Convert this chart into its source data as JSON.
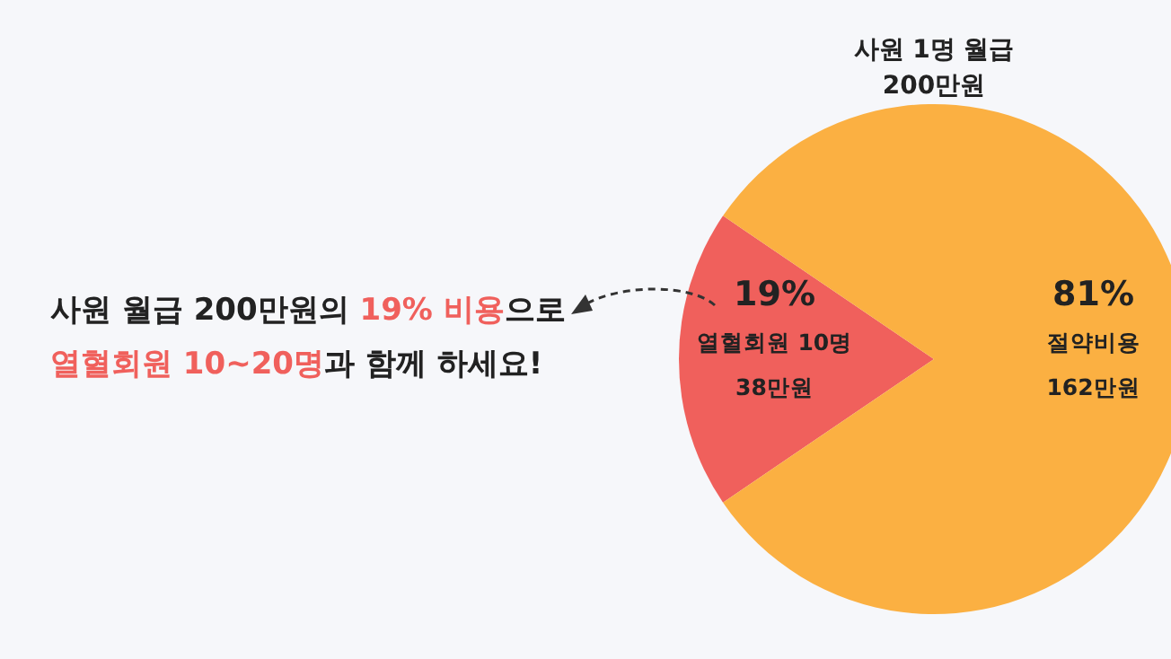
{
  "chart_data": {
    "type": "pie",
    "title": "사원 1명 월급\n200만원",
    "categories": [
      "열혈회원 10명",
      "절약비용"
    ],
    "values": [
      19,
      81
    ],
    "colors": [
      "#f0605c",
      "#fbb042"
    ],
    "value_labels": [
      "19%",
      "81%"
    ],
    "annotations": [
      {
        "text": "38만원",
        "x": "열혈회원 10명"
      },
      {
        "text": "162만원",
        "x": "절약비용"
      },
      "사원 월급 200만원의 ",
      "19% 비용",
      "으로",
      "열혈회원 10~20명",
      "과 함께 하세요!"
    ],
    "legend": false
  }
}
